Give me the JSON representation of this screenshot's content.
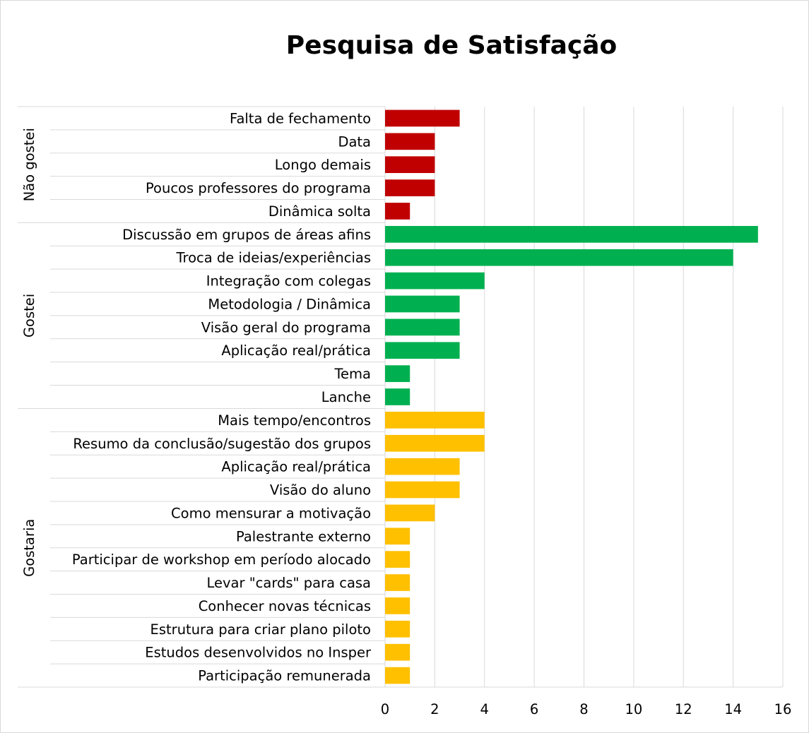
{
  "chart_data": {
    "type": "bar",
    "orientation": "horizontal",
    "title": "Pesquisa de Satisfação",
    "xlim": [
      0,
      16
    ],
    "xticks": [
      0,
      2,
      4,
      6,
      8,
      10,
      12,
      14,
      16
    ],
    "grid": true,
    "groups": [
      {
        "name": "Não gostei",
        "color": "#c00000",
        "categories": [
          "Falta de fechamento",
          "Data",
          "Longo demais",
          "Poucos professores do programa",
          "Dinâmica solta"
        ],
        "values": [
          3,
          2,
          2,
          2,
          1
        ]
      },
      {
        "name": "Gostei",
        "color": "#00b050",
        "categories": [
          "Discussão em grupos de áreas afins",
          "Troca de ideias/experiências",
          "Integração com colegas",
          "Metodologia / Dinâmica",
          "Visão geral do programa",
          "Aplicação real/prática",
          "Tema",
          "Lanche"
        ],
        "values": [
          15,
          14,
          4,
          3,
          3,
          3,
          1,
          1
        ]
      },
      {
        "name": "Gostaria",
        "color": "#ffc000",
        "categories": [
          "Mais tempo/encontros",
          "Resumo da conclusão/sugestão dos grupos",
          "Aplicação real/prática",
          "Visão do aluno",
          "Como mensurar a motivação",
          "Palestrante externo",
          "Participar de workshop em período alocado",
          "Levar \"cards\" para casa",
          "Conhecer novas técnicas",
          "Estrutura para criar plano piloto",
          "Estudos desenvolvidos no Insper",
          "Participação remunerada"
        ],
        "values": [
          4,
          4,
          3,
          3,
          2,
          1,
          1,
          1,
          1,
          1,
          1,
          1
        ]
      }
    ]
  }
}
